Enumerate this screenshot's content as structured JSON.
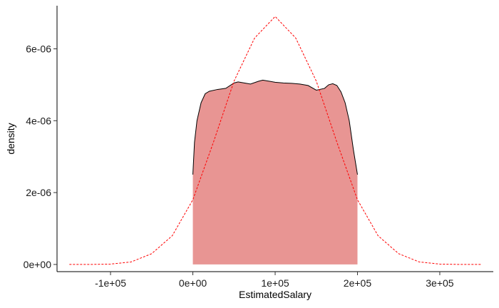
{
  "chart_data": {
    "type": "area",
    "title": "",
    "xlabel": "EstimatedSalary",
    "ylabel": "density",
    "xlim": [
      -165000,
      365000
    ],
    "ylim": [
      -2e-07,
      7.2e-06
    ],
    "x_ticks": [
      {
        "value": -100000,
        "label": "-1e+05"
      },
      {
        "value": 0,
        "label": "0e+00"
      },
      {
        "value": 100000,
        "label": "1e+05"
      },
      {
        "value": 200000,
        "label": "2e+05"
      },
      {
        "value": 300000,
        "label": "3e+05"
      }
    ],
    "y_ticks": [
      {
        "value": 0,
        "label": "0e+00"
      },
      {
        "value": 2e-06,
        "label": "2e-06"
      },
      {
        "value": 4e-06,
        "label": "4e-06"
      },
      {
        "value": 6e-06,
        "label": "6e-06"
      }
    ],
    "grid": false,
    "series": [
      {
        "kind": "density-area",
        "fill": "#E89593",
        "stroke": "#000000",
        "x": [
          0,
          2000,
          5000,
          10000,
          15000,
          20000,
          30000,
          40000,
          50000,
          55000,
          60000,
          70000,
          80000,
          85000,
          90000,
          100000,
          110000,
          120000,
          130000,
          140000,
          150000,
          160000,
          165000,
          170000,
          175000,
          180000,
          185000,
          190000,
          195000,
          200000
        ],
        "y": [
          2.5e-06,
          3.4e-06,
          4e-06,
          4.5e-06,
          4.75e-06,
          4.82e-06,
          4.87e-06,
          4.9e-06,
          5.05e-06,
          5.08e-06,
          5.06e-06,
          5.02e-06,
          5.1e-06,
          5.13e-06,
          5.11e-06,
          5.07e-06,
          5.05e-06,
          5.04e-06,
          5.02e-06,
          4.98e-06,
          4.85e-06,
          4.9e-06,
          5e-06,
          5.03e-06,
          4.98e-06,
          4.8e-06,
          4.5e-06,
          4e-06,
          3.2e-06,
          2.5e-06
        ]
      },
      {
        "kind": "normal-curve",
        "stroke": "#FF0000",
        "dashed": true,
        "x": [
          -150000,
          -125000,
          -100000,
          -75000,
          -50000,
          -25000,
          0,
          25000,
          50000,
          75000,
          100000,
          125000,
          150000,
          175000,
          200000,
          225000,
          250000,
          275000,
          300000,
          325000,
          350000
        ],
        "y": [
          0.0,
          0.0,
          1e-08,
          7e-08,
          3e-07,
          8e-07,
          1.8e-06,
          3.4e-06,
          5.1e-06,
          6.3e-06,
          6.9e-06,
          6.3e-06,
          5.1e-06,
          3.4e-06,
          1.8e-06,
          8e-07,
          3e-07,
          7e-08,
          1e-08,
          0.0,
          0.0
        ]
      }
    ]
  }
}
